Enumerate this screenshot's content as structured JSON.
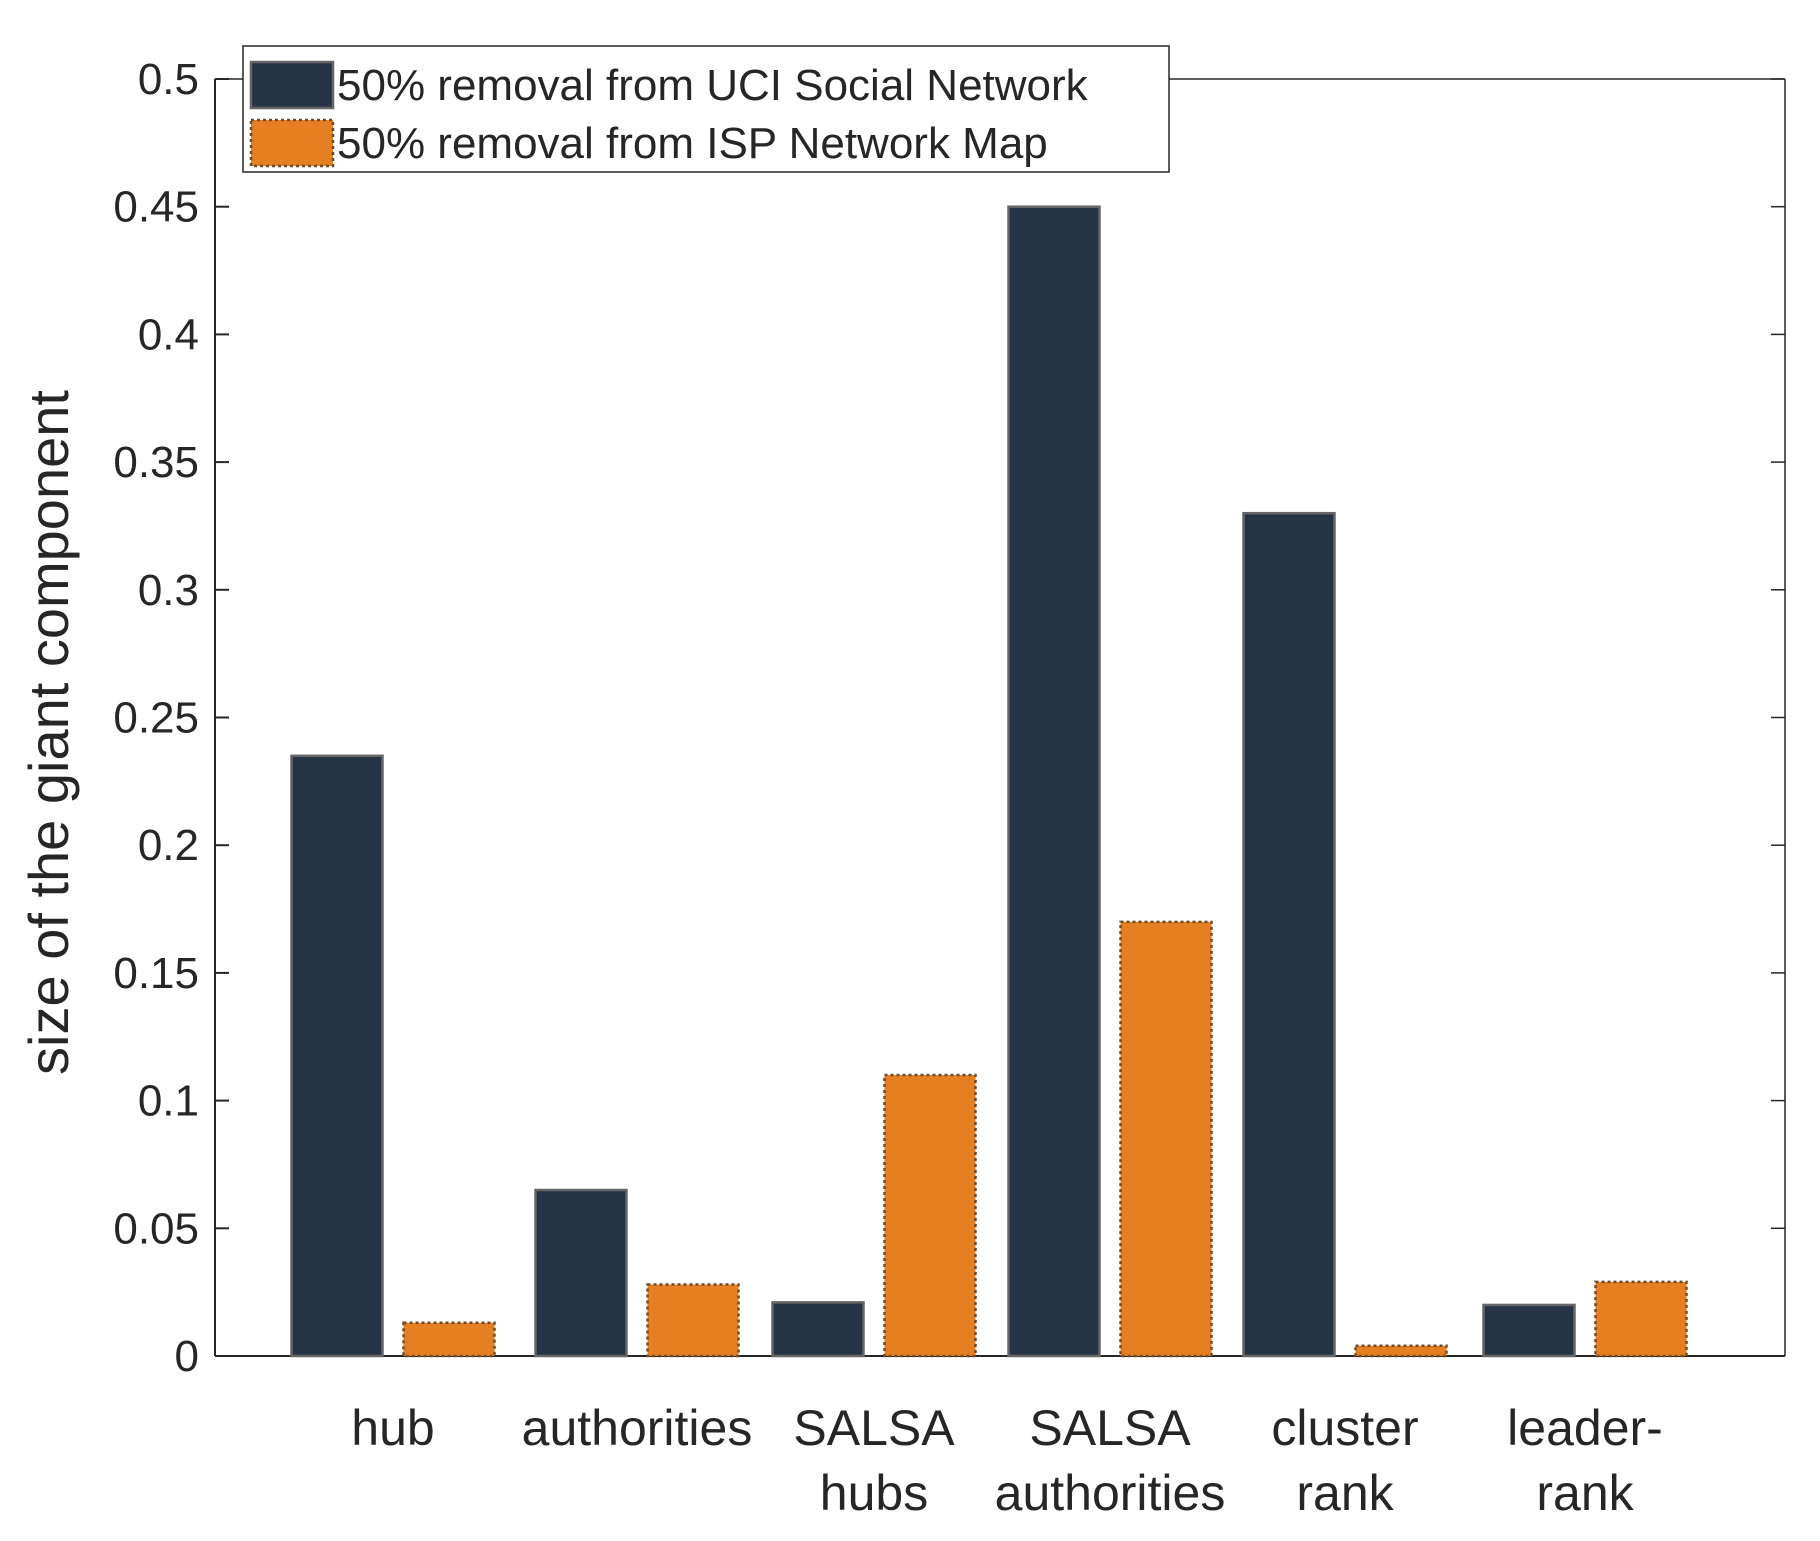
{
  "chart_data": {
    "type": "bar",
    "title": "",
    "xlabel": "",
    "ylabel": "size of the giant component",
    "ylim": [
      0,
      0.5
    ],
    "yticks": [
      0,
      0.05,
      0.1,
      0.15,
      0.2,
      0.25,
      0.3,
      0.35,
      0.4,
      0.45,
      0.5
    ],
    "ytick_labels": [
      "0",
      "0.05",
      "0.1",
      "0.15",
      "0.2",
      "0.25",
      "0.3",
      "0.35",
      "0.4",
      "0.45",
      "0.5"
    ],
    "categories": [
      [
        "hub"
      ],
      [
        "authorities"
      ],
      [
        "SALSA",
        "hubs"
      ],
      [
        "SALSA",
        "authorities"
      ],
      [
        "cluster",
        "rank"
      ],
      [
        "leader-",
        "rank"
      ]
    ],
    "series": [
      {
        "name": "50% removal from UCI Social Network",
        "color": "#263445",
        "edge": "#666666",
        "values": [
          0.235,
          0.065,
          0.021,
          0.45,
          0.33,
          0.02
        ]
      },
      {
        "name": "50% removal from ISP Network Map",
        "color": "#e67e22",
        "edge": "#6e4a26",
        "values": [
          0.013,
          0.028,
          0.11,
          0.17,
          0.004,
          0.029
        ]
      }
    ],
    "legend": "top-left",
    "grid": false
  }
}
